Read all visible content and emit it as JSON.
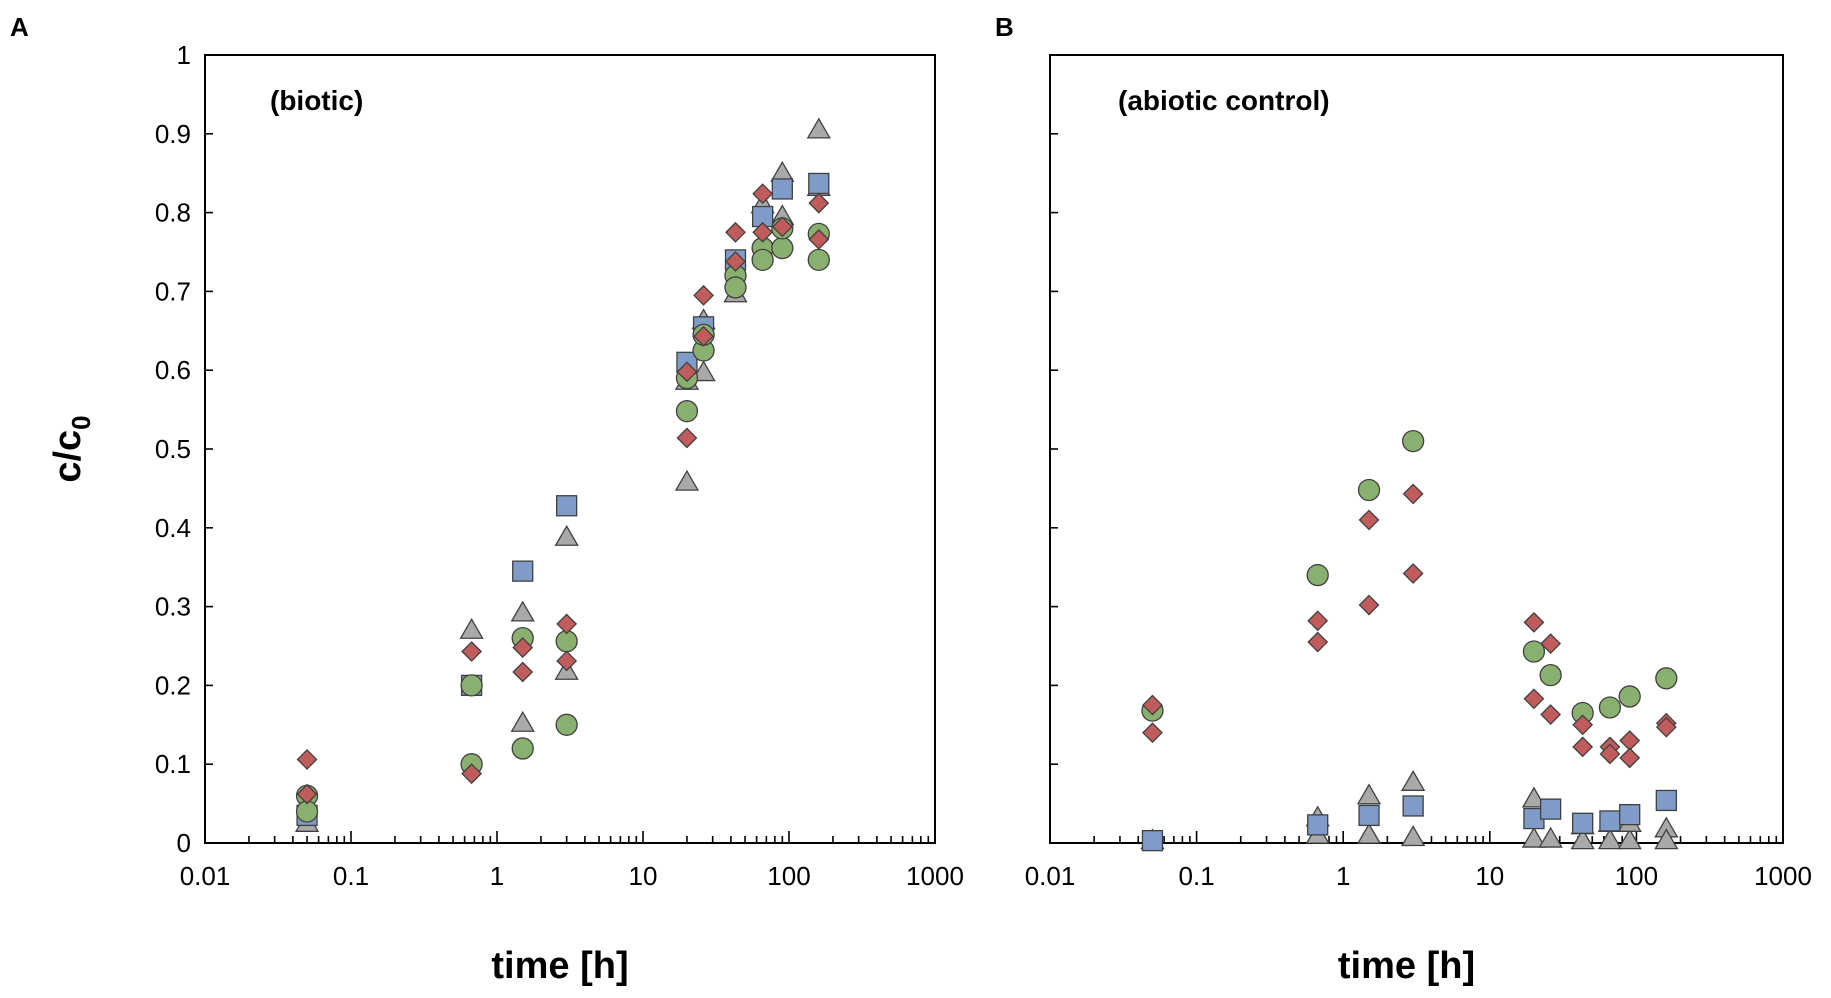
{
  "ylabel_main": "c/c",
  "ylabel_sub": "0",
  "colors": {
    "square": "#7f9cc8",
    "circle": "#8ab070",
    "diamond": "#c05c5c",
    "triangle": "#a9a9a9",
    "outline": "#404040"
  },
  "chart_data": [
    {
      "type": "scatter",
      "panel_label": "A",
      "annotation": "(biotic)",
      "xlabel": "time [h]",
      "ylabel": "c/c0",
      "xscale": "log",
      "xlim": [
        0.01,
        1000
      ],
      "ylim": [
        0,
        1
      ],
      "x_tick_labels": [
        "0.01",
        "0.1",
        "1",
        "10",
        "100",
        "1000"
      ],
      "y_tick_labels": [
        "0",
        "0.1",
        "0.2",
        "0.3",
        "0.4",
        "0.5",
        "0.6",
        "0.7",
        "0.8",
        "0.9",
        "1"
      ],
      "show_y_labels": true,
      "series": [
        {
          "name": "square",
          "marker": "square",
          "points": [
            [
              0.05,
              0.035
            ],
            [
              0.67,
              0.2
            ],
            [
              1.5,
              0.345
            ],
            [
              3,
              0.428
            ],
            [
              20,
              0.61
            ],
            [
              26,
              0.655
            ],
            [
              43,
              0.74
            ],
            [
              66,
              0.795
            ],
            [
              90,
              0.83
            ],
            [
              160,
              0.837
            ]
          ]
        },
        {
          "name": "circle",
          "marker": "circle",
          "points": [
            [
              0.05,
              0.06
            ],
            [
              0.05,
              0.04
            ],
            [
              0.67,
              0.2
            ],
            [
              0.67,
              0.1
            ],
            [
              1.5,
              0.26
            ],
            [
              1.5,
              0.12
            ],
            [
              3,
              0.256
            ],
            [
              3,
              0.15
            ],
            [
              20,
              0.59
            ],
            [
              20,
              0.548
            ],
            [
              26,
              0.625
            ],
            [
              26,
              0.645
            ],
            [
              43,
              0.72
            ],
            [
              43,
              0.705
            ],
            [
              66,
              0.755
            ],
            [
              66,
              0.74
            ],
            [
              90,
              0.755
            ],
            [
              90,
              0.78
            ],
            [
              160,
              0.773
            ],
            [
              160,
              0.74
            ]
          ]
        },
        {
          "name": "diamond",
          "marker": "diamond",
          "points": [
            [
              0.05,
              0.106
            ],
            [
              0.05,
              0.062
            ],
            [
              0.67,
              0.243
            ],
            [
              0.67,
              0.088
            ],
            [
              1.5,
              0.248
            ],
            [
              1.5,
              0.217
            ],
            [
              3,
              0.278
            ],
            [
              3,
              0.231
            ],
            [
              20,
              0.598
            ],
            [
              20,
              0.514
            ],
            [
              26,
              0.695
            ],
            [
              26,
              0.643
            ],
            [
              43,
              0.775
            ],
            [
              43,
              0.738
            ],
            [
              66,
              0.824
            ],
            [
              66,
              0.775
            ],
            [
              90,
              0.782
            ],
            [
              160,
              0.812
            ],
            [
              160,
              0.766
            ]
          ]
        },
        {
          "name": "triangle",
          "marker": "triangle",
          "points": [
            [
              0.05,
              0.025
            ],
            [
              0.67,
              0.27
            ],
            [
              1.5,
              0.292
            ],
            [
              1.5,
              0.152
            ],
            [
              3,
              0.388
            ],
            [
              3,
              0.218
            ],
            [
              20,
              0.586
            ],
            [
              20,
              0.458
            ],
            [
              26,
              0.597
            ],
            [
              26,
              0.663
            ],
            [
              43,
              0.697
            ],
            [
              66,
              0.81
            ],
            [
              90,
              0.85
            ],
            [
              90,
              0.795
            ],
            [
              160,
              0.905
            ],
            [
              160,
              0.832
            ]
          ]
        }
      ]
    },
    {
      "type": "scatter",
      "panel_label": "B",
      "annotation": "(abiotic control)",
      "xlabel": "time [h]",
      "ylabel": "",
      "xscale": "log",
      "xlim": [
        0.01,
        1000
      ],
      "ylim": [
        0,
        1
      ],
      "x_tick_labels": [
        "0.01",
        "0.1",
        "1",
        "10",
        "100",
        "1000"
      ],
      "y_tick_labels": [],
      "show_y_labels": false,
      "series": [
        {
          "name": "square",
          "marker": "square",
          "points": [
            [
              0.05,
              0.003
            ],
            [
              0.67,
              0.023
            ],
            [
              1.5,
              0.035
            ],
            [
              3,
              0.047
            ],
            [
              20,
              0.031
            ],
            [
              26,
              0.043
            ],
            [
              43,
              0.025
            ],
            [
              66,
              0.028
            ],
            [
              90,
              0.036
            ],
            [
              160,
              0.054
            ]
          ]
        },
        {
          "name": "circle",
          "marker": "circle",
          "points": [
            [
              0.05,
              0.168
            ],
            [
              0.67,
              0.34
            ],
            [
              1.5,
              0.448
            ],
            [
              3,
              0.51
            ],
            [
              20,
              0.243
            ],
            [
              26,
              0.213
            ],
            [
              43,
              0.165
            ],
            [
              66,
              0.172
            ],
            [
              90,
              0.186
            ],
            [
              160,
              0.209
            ]
          ]
        },
        {
          "name": "diamond",
          "marker": "diamond",
          "points": [
            [
              0.05,
              0.175
            ],
            [
              0.05,
              0.14
            ],
            [
              0.67,
              0.282
            ],
            [
              0.67,
              0.255
            ],
            [
              1.5,
              0.41
            ],
            [
              1.5,
              0.302
            ],
            [
              3,
              0.443
            ],
            [
              3,
              0.342
            ],
            [
              20,
              0.28
            ],
            [
              20,
              0.183
            ],
            [
              26,
              0.253
            ],
            [
              26,
              0.163
            ],
            [
              43,
              0.15
            ],
            [
              43,
              0.122
            ],
            [
              66,
              0.122
            ],
            [
              66,
              0.113
            ],
            [
              90,
              0.13
            ],
            [
              90,
              0.108
            ],
            [
              160,
              0.152
            ],
            [
              160,
              0.147
            ]
          ]
        },
        {
          "name": "triangle",
          "marker": "triangle",
          "points": [
            [
              0.05,
              0.003
            ],
            [
              0.67,
              0.032
            ],
            [
              0.67,
              0.01
            ],
            [
              1.5,
              0.06
            ],
            [
              1.5,
              0.01
            ],
            [
              3,
              0.077
            ],
            [
              3,
              0.007
            ],
            [
              20,
              0.056
            ],
            [
              20,
              0.005
            ],
            [
              26,
              0.005
            ],
            [
              43,
              0.022
            ],
            [
              43,
              0.003
            ],
            [
              66,
              0.003
            ],
            [
              66,
              0.025
            ],
            [
              90,
              0.003
            ],
            [
              90,
              0.025
            ],
            [
              160,
              0.018
            ],
            [
              160,
              0.003
            ]
          ]
        }
      ]
    }
  ]
}
